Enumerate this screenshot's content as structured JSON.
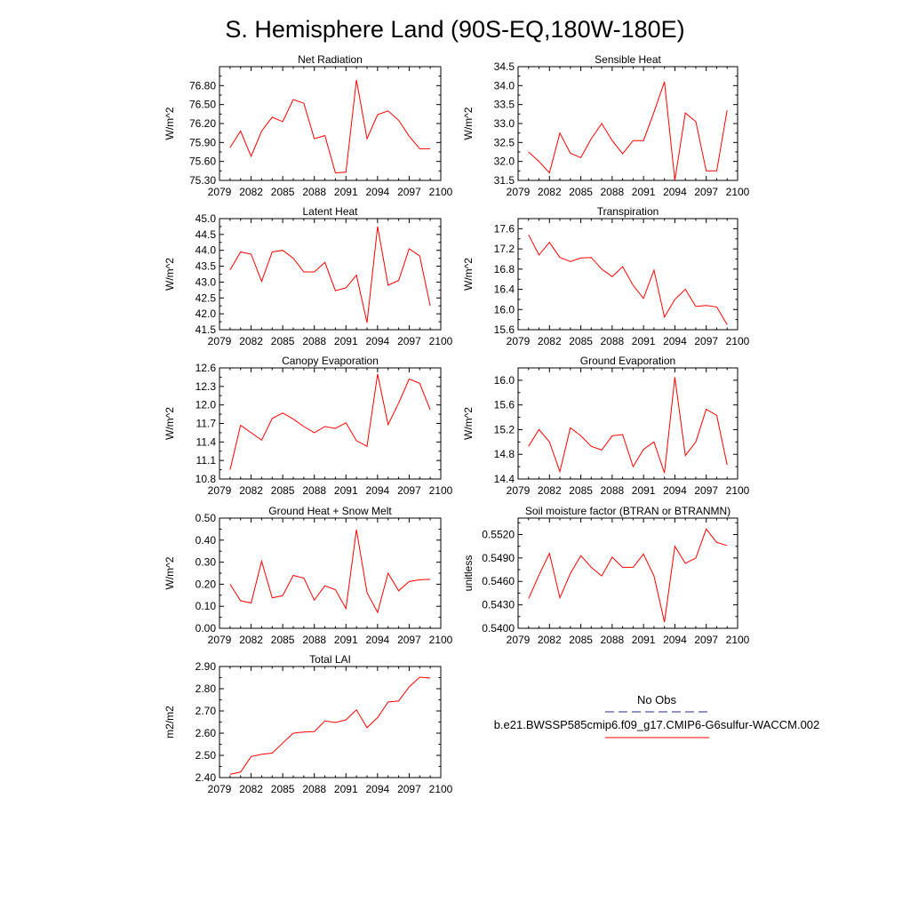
{
  "figure": {
    "title": "S. Hemisphere Land (90S-EQ,180W-180E)"
  },
  "legend": {
    "obs_label": "No Obs",
    "obs_color": "#2a2a8a",
    "model_label": "b.e21.BWSSP585cmip6.f09_g17.CMIP6-G6sulfur-WACCM.002",
    "model_color": "#ff0000"
  },
  "chart_data": [
    {
      "type": "line",
      "title": "Net Radiation",
      "ylabel": "W/m^2",
      "xlim": [
        2079,
        2100
      ],
      "ylim": [
        75.3,
        77.1
      ],
      "xticks": [
        2079,
        2082,
        2085,
        2088,
        2091,
        2094,
        2097,
        2100
      ],
      "yticks": [
        75.3,
        75.6,
        75.9,
        76.2,
        76.5,
        76.8
      ],
      "ytick_labels": [
        "75.30",
        "75.60",
        "75.90",
        "76.20",
        "76.50",
        "76.80"
      ],
      "x": [
        2080,
        2081,
        2082,
        2083,
        2084,
        2085,
        2086,
        2087,
        2088,
        2089,
        2090,
        2091,
        2092,
        2093,
        2094,
        2095,
        2096,
        2097,
        2098,
        2099
      ],
      "series": [
        {
          "values": [
            75.82,
            76.08,
            75.68,
            76.08,
            76.3,
            76.23,
            76.58,
            76.52,
            75.96,
            76.01,
            75.42,
            75.43,
            76.89,
            75.96,
            76.34,
            76.4,
            76.25,
            76.0,
            75.8,
            75.8
          ],
          "color": "#ff0000"
        }
      ]
    },
    {
      "type": "line",
      "title": "Sensible Heat",
      "ylabel": "W/m^2",
      "xlim": [
        2079,
        2100
      ],
      "ylim": [
        31.5,
        34.5
      ],
      "xticks": [
        2079,
        2082,
        2085,
        2088,
        2091,
        2094,
        2097,
        2100
      ],
      "yticks": [
        31.5,
        32.0,
        32.5,
        33.0,
        33.5,
        34.0,
        34.5
      ],
      "ytick_labels": [
        "31.5",
        "32.0",
        "32.5",
        "33.0",
        "33.5",
        "34.0",
        "34.5"
      ],
      "x": [
        2080,
        2081,
        2082,
        2083,
        2084,
        2085,
        2086,
        2087,
        2088,
        2089,
        2090,
        2091,
        2092,
        2093,
        2094,
        2095,
        2096,
        2097,
        2098,
        2099
      ],
      "series": [
        {
          "values": [
            32.25,
            32.0,
            31.7,
            32.75,
            32.22,
            32.1,
            32.6,
            33.0,
            32.55,
            32.2,
            32.55,
            32.55,
            33.3,
            34.1,
            31.5,
            33.28,
            33.05,
            31.75,
            31.75,
            33.35
          ],
          "color": "#ff0000"
        }
      ]
    },
    {
      "type": "line",
      "title": "Latent Heat",
      "ylabel": "W/m^2",
      "xlim": [
        2079,
        2100
      ],
      "ylim": [
        41.5,
        45.0
      ],
      "xticks": [
        2079,
        2082,
        2085,
        2088,
        2091,
        2094,
        2097,
        2100
      ],
      "yticks": [
        41.5,
        42.0,
        42.5,
        43.0,
        43.5,
        44.0,
        44.5,
        45.0
      ],
      "ytick_labels": [
        "41.5",
        "42.0",
        "42.5",
        "43.0",
        "43.5",
        "44.0",
        "44.5",
        "45.0"
      ],
      "x": [
        2080,
        2081,
        2082,
        2083,
        2084,
        2085,
        2086,
        2087,
        2088,
        2089,
        2090,
        2091,
        2092,
        2093,
        2094,
        2095,
        2096,
        2097,
        2098,
        2099
      ],
      "series": [
        {
          "values": [
            43.38,
            43.95,
            43.88,
            43.02,
            43.95,
            44.0,
            43.75,
            43.32,
            43.32,
            43.62,
            42.73,
            42.82,
            43.22,
            41.72,
            44.75,
            42.9,
            43.05,
            44.05,
            43.82,
            42.25
          ],
          "color": "#ff0000"
        }
      ]
    },
    {
      "type": "line",
      "title": "Transpiration",
      "ylabel": "W/m^2",
      "xlim": [
        2079,
        2100
      ],
      "ylim": [
        15.6,
        17.8
      ],
      "xticks": [
        2079,
        2082,
        2085,
        2088,
        2091,
        2094,
        2097,
        2100
      ],
      "yticks": [
        15.6,
        16.0,
        16.4,
        16.8,
        17.2,
        17.6
      ],
      "ytick_labels": [
        "15.6",
        "16.0",
        "16.4",
        "16.8",
        "17.2",
        "17.6"
      ],
      "x": [
        2080,
        2081,
        2082,
        2083,
        2084,
        2085,
        2086,
        2087,
        2088,
        2089,
        2090,
        2091,
        2092,
        2093,
        2094,
        2095,
        2096,
        2097,
        2098,
        2099
      ],
      "series": [
        {
          "values": [
            17.48,
            17.08,
            17.33,
            17.03,
            16.95,
            17.02,
            17.03,
            16.8,
            16.65,
            16.85,
            16.48,
            16.22,
            16.78,
            15.85,
            16.2,
            16.4,
            16.06,
            16.08,
            16.05,
            15.7
          ],
          "color": "#ff0000"
        }
      ]
    },
    {
      "type": "line",
      "title": "Canopy Evaporation",
      "ylabel": "W/m^2",
      "xlim": [
        2079,
        2100
      ],
      "ylim": [
        10.8,
        12.6
      ],
      "xticks": [
        2079,
        2082,
        2085,
        2088,
        2091,
        2094,
        2097,
        2100
      ],
      "yticks": [
        10.8,
        11.1,
        11.4,
        11.7,
        12.0,
        12.3,
        12.6
      ],
      "ytick_labels": [
        "10.8",
        "11.1",
        "11.4",
        "11.7",
        "12.0",
        "12.3",
        "12.6"
      ],
      "x": [
        2080,
        2081,
        2082,
        2083,
        2084,
        2085,
        2086,
        2087,
        2088,
        2089,
        2090,
        2091,
        2092,
        2093,
        2094,
        2095,
        2096,
        2097,
        2098,
        2099
      ],
      "series": [
        {
          "values": [
            10.95,
            11.67,
            11.55,
            11.43,
            11.78,
            11.87,
            11.77,
            11.65,
            11.55,
            11.65,
            11.62,
            11.71,
            11.42,
            11.33,
            12.5,
            11.68,
            12.03,
            12.42,
            12.35,
            11.92
          ],
          "color": "#ff0000"
        }
      ]
    },
    {
      "type": "line",
      "title": "Ground Evaporation",
      "ylabel": "W/m^2",
      "xlim": [
        2079,
        2100
      ],
      "ylim": [
        14.4,
        16.2
      ],
      "xticks": [
        2079,
        2082,
        2085,
        2088,
        2091,
        2094,
        2097,
        2100
      ],
      "yticks": [
        14.4,
        14.8,
        15.2,
        15.6,
        16.0
      ],
      "ytick_labels": [
        "14.4",
        "14.8",
        "15.2",
        "15.6",
        "16.0"
      ],
      "x": [
        2080,
        2081,
        2082,
        2083,
        2084,
        2085,
        2086,
        2087,
        2088,
        2089,
        2090,
        2091,
        2092,
        2093,
        2094,
        2095,
        2096,
        2097,
        2098,
        2099
      ],
      "series": [
        {
          "values": [
            14.93,
            15.2,
            15.0,
            14.52,
            15.23,
            15.1,
            14.93,
            14.87,
            15.1,
            15.12,
            14.6,
            14.88,
            15.0,
            14.5,
            16.05,
            14.78,
            15.0,
            15.53,
            15.43,
            14.63
          ],
          "color": "#ff0000"
        }
      ]
    },
    {
      "type": "line",
      "title": "Ground Heat + Snow Melt",
      "ylabel": "W/m^2",
      "xlim": [
        2079,
        2100
      ],
      "ylim": [
        0.0,
        0.5
      ],
      "xticks": [
        2079,
        2082,
        2085,
        2088,
        2091,
        2094,
        2097,
        2100
      ],
      "yticks": [
        0.0,
        0.1,
        0.2,
        0.3,
        0.4,
        0.5
      ],
      "ytick_labels": [
        "0.00",
        "0.10",
        "0.20",
        "0.30",
        "0.40",
        "0.50"
      ],
      "x": [
        2080,
        2081,
        2082,
        2083,
        2084,
        2085,
        2086,
        2087,
        2088,
        2089,
        2090,
        2091,
        2092,
        2093,
        2094,
        2095,
        2096,
        2097,
        2098,
        2099
      ],
      "series": [
        {
          "values": [
            0.2,
            0.125,
            0.115,
            0.305,
            0.138,
            0.148,
            0.24,
            0.228,
            0.128,
            0.193,
            0.175,
            0.09,
            0.448,
            0.162,
            0.072,
            0.25,
            0.17,
            0.212,
            0.22,
            0.222
          ],
          "color": "#ff0000"
        }
      ]
    },
    {
      "type": "line",
      "title": "Soil moisture factor (BTRAN or BTRANMN)",
      "ylabel": "unitless",
      "xlim": [
        2079,
        2100
      ],
      "ylim": [
        0.54,
        0.5541
      ],
      "xticks": [
        2079,
        2082,
        2085,
        2088,
        2091,
        2094,
        2097,
        2100
      ],
      "yticks": [
        0.54,
        0.543,
        0.546,
        0.549,
        0.552
      ],
      "ytick_labels": [
        "0.5400",
        "0.5430",
        "0.5460",
        "0.5490",
        "0.5520"
      ],
      "x": [
        2080,
        2081,
        2082,
        2083,
        2084,
        2085,
        2086,
        2087,
        2088,
        2089,
        2090,
        2091,
        2092,
        2093,
        2094,
        2095,
        2096,
        2097,
        2098,
        2099
      ],
      "series": [
        {
          "values": [
            0.5438,
            0.5468,
            0.5496,
            0.5439,
            0.547,
            0.5493,
            0.5478,
            0.5467,
            0.5491,
            0.5478,
            0.5478,
            0.5495,
            0.5467,
            0.5408,
            0.5505,
            0.5483,
            0.549,
            0.5527,
            0.551,
            0.5506
          ],
          "color": "#ff0000"
        }
      ]
    },
    {
      "type": "line",
      "title": "Total LAI",
      "ylabel": "m2/m2",
      "xlim": [
        2079,
        2100
      ],
      "ylim": [
        2.4,
        2.9
      ],
      "xticks": [
        2079,
        2082,
        2085,
        2088,
        2091,
        2094,
        2097,
        2100
      ],
      "yticks": [
        2.4,
        2.5,
        2.6,
        2.7,
        2.8,
        2.9
      ],
      "ytick_labels": [
        "2.40",
        "2.50",
        "2.60",
        "2.70",
        "2.80",
        "2.90"
      ],
      "x": [
        2080,
        2081,
        2082,
        2083,
        2084,
        2085,
        2086,
        2087,
        2088,
        2089,
        2090,
        2091,
        2092,
        2093,
        2094,
        2095,
        2096,
        2097,
        2098,
        2099
      ],
      "series": [
        {
          "values": [
            2.415,
            2.425,
            2.495,
            2.505,
            2.51,
            2.555,
            2.6,
            2.605,
            2.607,
            2.655,
            2.648,
            2.66,
            2.705,
            2.625,
            2.67,
            2.74,
            2.745,
            2.808,
            2.852,
            2.848
          ],
          "color": "#ff0000"
        }
      ]
    }
  ]
}
